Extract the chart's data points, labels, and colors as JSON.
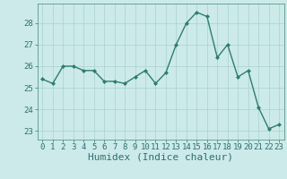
{
  "x": [
    0,
    1,
    2,
    3,
    4,
    5,
    6,
    7,
    8,
    9,
    10,
    11,
    12,
    13,
    14,
    15,
    16,
    17,
    18,
    19,
    20,
    21,
    22,
    23
  ],
  "y": [
    25.4,
    25.2,
    26.0,
    26.0,
    25.8,
    25.8,
    25.3,
    25.3,
    25.2,
    25.5,
    25.8,
    25.2,
    25.7,
    27.0,
    28.0,
    28.5,
    28.3,
    26.4,
    27.0,
    25.5,
    25.8,
    24.1,
    23.1,
    23.3
  ],
  "line_color": "#2e7d6e",
  "marker": "D",
  "marker_size": 2.0,
  "linewidth": 1.0,
  "xlabel": "Humidex (Indice chaleur)",
  "xlim": [
    -0.5,
    23.5
  ],
  "ylim": [
    22.6,
    28.9
  ],
  "yticks": [
    23,
    24,
    25,
    26,
    27,
    28
  ],
  "xticks": [
    0,
    1,
    2,
    3,
    4,
    5,
    6,
    7,
    8,
    9,
    10,
    11,
    12,
    13,
    14,
    15,
    16,
    17,
    18,
    19,
    20,
    21,
    22,
    23
  ],
  "bg_color": "#cceaea",
  "grid_color": "#b0d4d4",
  "tick_fontsize": 6.5,
  "xlabel_fontsize": 8.0,
  "tick_color": "#2e6e6e",
  "spine_color": "#5a9a8a"
}
